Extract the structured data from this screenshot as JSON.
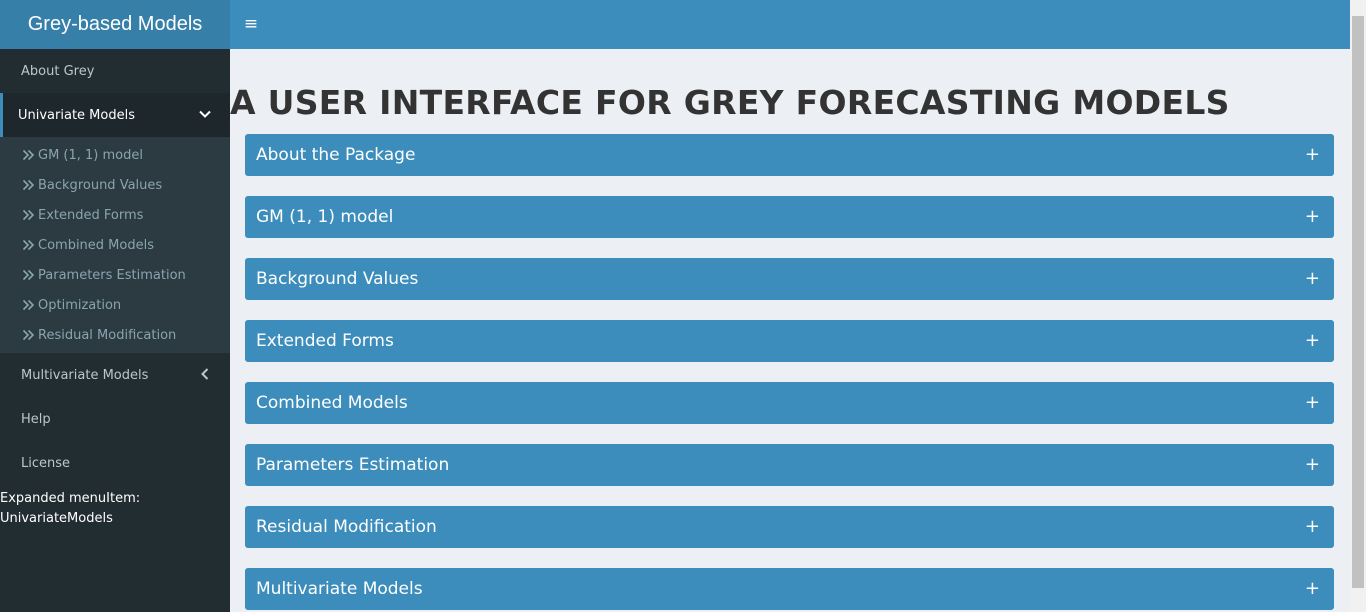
{
  "header": {
    "logo": "Grey-based Models",
    "toggle_icon": "≡"
  },
  "sidebar": {
    "items": [
      {
        "label": "About Grey"
      },
      {
        "label": "Univariate Models",
        "expanded": true
      },
      {
        "label": "Multivariate Models",
        "expanded": false
      },
      {
        "label": "Help"
      },
      {
        "label": "License"
      }
    ],
    "submenu": [
      "GM (1, 1) model",
      "Background Values",
      "Extended Forms",
      "Combined Models",
      "Parameters Estimation",
      "Optimization",
      "Residual Modification"
    ],
    "expanded_note_line1": "Expanded menuItem:",
    "expanded_note_line2": "UnivariateModels"
  },
  "main": {
    "title": "A USER INTERFACE FOR GREY FORECASTING MODELS",
    "panels": [
      "About the Package",
      "GM (1, 1) model",
      "Background Values",
      "Extended Forms",
      "Combined Models",
      "Parameters Estimation",
      "Residual Modification",
      "Multivariate Models"
    ],
    "plus_icon": "+"
  },
  "colors": {
    "header": "#3c8dbc",
    "logo": "#367fa9",
    "sidebar": "#222d32",
    "submenu": "#2c3b41",
    "body": "#ecf0f5"
  }
}
